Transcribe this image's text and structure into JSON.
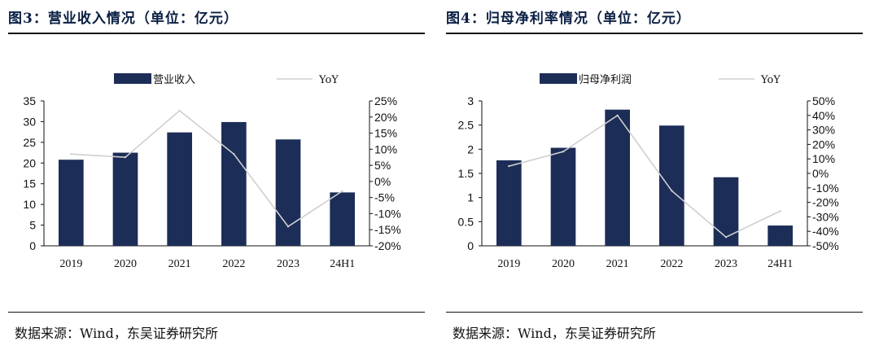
{
  "charts": [
    {
      "title": "图3：营业收入情况（单位：亿元）",
      "source": "数据来源：Wind，东吴证券研究所"
    },
    {
      "title": "图4：归母净利率情况（单位：亿元）",
      "source": "数据来源：Wind，东吴证券研究所"
    }
  ],
  "colors": {
    "bar": "#1c2d57",
    "line": "#cfcfcf",
    "axis": "#111111"
  },
  "chart_data": [
    {
      "type": "bar",
      "categories": [
        "2019",
        "2020",
        "2021",
        "2022",
        "2023",
        "24H1"
      ],
      "series": [
        {
          "name": "营业收入",
          "type": "bar",
          "axis": "left",
          "values": [
            20.8,
            22.5,
            27.4,
            29.9,
            25.7,
            12.9
          ]
        },
        {
          "name": "YoY",
          "type": "line",
          "axis": "right",
          "values": [
            8.5,
            7.5,
            22,
            8.5,
            -14,
            -3
          ]
        }
      ],
      "ylim_left": [
        0,
        35
      ],
      "yticks_left": [
        "0",
        "5",
        "10",
        "15",
        "20",
        "25",
        "30",
        "35"
      ],
      "ylim_right": [
        -20,
        25
      ],
      "yticks_right": [
        "-20%",
        "-15%",
        "-10%",
        "-5%",
        "0%",
        "5%",
        "10%",
        "15%",
        "20%",
        "25%"
      ],
      "legend": "top",
      "grid": false
    },
    {
      "type": "bar",
      "categories": [
        "2019",
        "2020",
        "2021",
        "2022",
        "2023",
        "24H1"
      ],
      "series": [
        {
          "name": "归母净利润",
          "type": "bar",
          "axis": "left",
          "values": [
            1.77,
            2.03,
            2.82,
            2.49,
            1.42,
            0.42
          ]
        },
        {
          "name": "YoY",
          "type": "line",
          "axis": "right",
          "values": [
            5,
            15,
            40,
            -12,
            -44,
            -26
          ]
        }
      ],
      "ylim_left": [
        0,
        3
      ],
      "yticks_left": [
        "0",
        "0.5",
        "1",
        "1.5",
        "2",
        "2.5",
        "3"
      ],
      "ylim_right": [
        -50,
        50
      ],
      "yticks_right": [
        "-50%",
        "-40%",
        "-30%",
        "-20%",
        "-10%",
        "0%",
        "10%",
        "20%",
        "30%",
        "40%",
        "50%"
      ],
      "legend": "top",
      "grid": false
    }
  ]
}
